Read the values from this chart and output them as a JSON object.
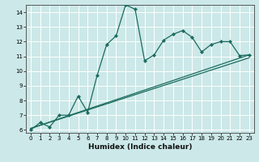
{
  "xlabel": "Humidex (Indice chaleur)",
  "bg_color": "#cce8e8",
  "grid_color": "#ffffff",
  "line_color": "#1a6b5e",
  "xlim": [
    -0.5,
    23.5
  ],
  "ylim": [
    5.8,
    14.5
  ],
  "xticks": [
    0,
    1,
    2,
    3,
    4,
    5,
    6,
    7,
    8,
    9,
    10,
    11,
    12,
    13,
    14,
    15,
    16,
    17,
    18,
    19,
    20,
    21,
    22,
    23
  ],
  "yticks": [
    6,
    7,
    8,
    9,
    10,
    11,
    12,
    13,
    14
  ],
  "line1_x": [
    0,
    1,
    2,
    3,
    4,
    5,
    6,
    7,
    8,
    9,
    10,
    11,
    12,
    13,
    14,
    15,
    16,
    17,
    18,
    19,
    20,
    21,
    22,
    23
  ],
  "line1_y": [
    6.0,
    6.5,
    6.2,
    7.0,
    7.0,
    8.3,
    7.2,
    9.7,
    11.8,
    12.4,
    14.5,
    14.2,
    10.7,
    11.1,
    12.1,
    12.5,
    12.75,
    12.3,
    11.3,
    11.8,
    12.0,
    12.0,
    11.05,
    11.1
  ],
  "line2_x": [
    0,
    23
  ],
  "line2_y": [
    6.1,
    10.9
  ],
  "line3_x": [
    0,
    23
  ],
  "line3_y": [
    6.1,
    11.1
  ]
}
